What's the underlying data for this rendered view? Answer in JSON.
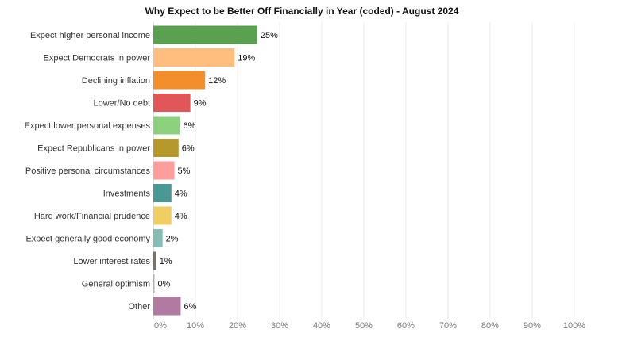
{
  "chart_data": {
    "type": "bar",
    "orientation": "horizontal",
    "title": "Why Expect to be Better Off Financially in Year (coded) - August 2024",
    "xlabel": "",
    "ylabel": "",
    "xlim": [
      0,
      100
    ],
    "grid": true,
    "ticks": [
      "0%",
      "10%",
      "20%",
      "30%",
      "40%",
      "50%",
      "60%",
      "70%",
      "80%",
      "90%",
      "100%"
    ],
    "tick_values": [
      0,
      10,
      20,
      30,
      40,
      50,
      60,
      70,
      80,
      90,
      100
    ],
    "categories": [
      "Expect higher personal income",
      "Expect Democrats in power",
      "Declining inflation",
      "Lower/No debt",
      "Expect lower personal expenses",
      "Expect Republicans in power",
      "Positive personal circumstances",
      "Investments",
      "Hard work/Financial prudence",
      "Expect generally good economy",
      "Lower interest rates",
      "General optimism",
      "Other"
    ],
    "values": [
      25,
      19,
      12,
      9,
      6,
      6,
      5,
      4,
      4,
      2,
      1,
      0,
      6
    ],
    "value_labels": [
      "25%",
      "19%",
      "12%",
      "9%",
      "6%",
      "6%",
      "5%",
      "4%",
      "4%",
      "2%",
      "1%",
      "0%",
      "6%"
    ],
    "colors": [
      "#59a14f",
      "#ffbe7d",
      "#f28e2b",
      "#e15759",
      "#8cd17d",
      "#b6992d",
      "#ff9d9a",
      "#499894",
      "#f1ce63",
      "#86bcb6",
      "#79706e",
      "#bab0ac",
      "#b07aa1"
    ],
    "display_values": [
      24.7,
      19.3,
      12.3,
      8.8,
      6.3,
      6.0,
      5.0,
      4.3,
      4.3,
      2.2,
      0.7,
      0.2,
      6.5
    ]
  }
}
